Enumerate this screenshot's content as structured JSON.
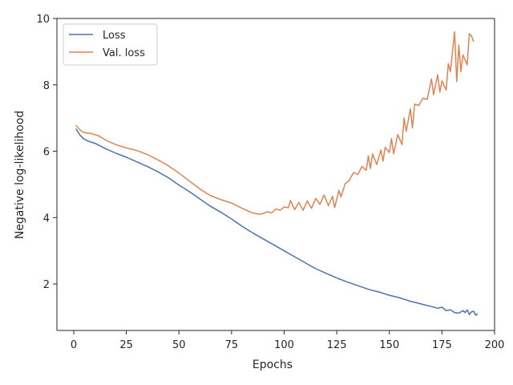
{
  "chart_data": {
    "type": "line",
    "title": "",
    "xlabel": "Epochs",
    "ylabel": "Negative log-likelihood",
    "xlim": [
      -8,
      200
    ],
    "ylim": [
      0.6,
      10
    ],
    "xticks": [
      0,
      25,
      50,
      75,
      100,
      125,
      150,
      175,
      200
    ],
    "yticks": [
      2,
      4,
      6,
      8,
      10
    ],
    "grid": false,
    "legend": {
      "position": "top-left"
    },
    "series": [
      {
        "name": "Loss",
        "color": "#4c72b0",
        "points": [
          [
            1,
            6.68
          ],
          [
            3,
            6.48
          ],
          [
            5,
            6.36
          ],
          [
            7,
            6.3
          ],
          [
            10,
            6.24
          ],
          [
            15,
            6.08
          ],
          [
            20,
            5.94
          ],
          [
            25,
            5.82
          ],
          [
            30,
            5.68
          ],
          [
            35,
            5.54
          ],
          [
            40,
            5.38
          ],
          [
            45,
            5.2
          ],
          [
            50,
            4.98
          ],
          [
            55,
            4.78
          ],
          [
            60,
            4.56
          ],
          [
            65,
            4.34
          ],
          [
            70,
            4.16
          ],
          [
            75,
            3.96
          ],
          [
            80,
            3.74
          ],
          [
            85,
            3.54
          ],
          [
            90,
            3.36
          ],
          [
            95,
            3.18
          ],
          [
            100,
            3.0
          ],
          [
            105,
            2.82
          ],
          [
            110,
            2.64
          ],
          [
            115,
            2.46
          ],
          [
            120,
            2.32
          ],
          [
            125,
            2.18
          ],
          [
            130,
            2.06
          ],
          [
            135,
            1.95
          ],
          [
            140,
            1.84
          ],
          [
            145,
            1.76
          ],
          [
            150,
            1.66
          ],
          [
            155,
            1.58
          ],
          [
            160,
            1.48
          ],
          [
            165,
            1.4
          ],
          [
            170,
            1.32
          ],
          [
            173,
            1.27
          ],
          [
            175,
            1.3
          ],
          [
            177,
            1.2
          ],
          [
            179,
            1.22
          ],
          [
            181,
            1.14
          ],
          [
            183,
            1.12
          ],
          [
            185,
            1.2
          ],
          [
            186,
            1.14
          ],
          [
            187,
            1.22
          ],
          [
            188,
            1.08
          ],
          [
            189,
            1.16
          ],
          [
            190,
            1.18
          ],
          [
            191,
            1.06
          ],
          [
            192,
            1.1
          ]
        ]
      },
      {
        "name": "Val. loss",
        "color": "#dd8452",
        "points": [
          [
            1,
            6.78
          ],
          [
            3,
            6.64
          ],
          [
            5,
            6.56
          ],
          [
            8,
            6.54
          ],
          [
            12,
            6.46
          ],
          [
            15,
            6.34
          ],
          [
            20,
            6.2
          ],
          [
            25,
            6.1
          ],
          [
            30,
            6.02
          ],
          [
            35,
            5.9
          ],
          [
            40,
            5.74
          ],
          [
            45,
            5.56
          ],
          [
            50,
            5.34
          ],
          [
            55,
            5.1
          ],
          [
            60,
            4.86
          ],
          [
            65,
            4.66
          ],
          [
            70,
            4.54
          ],
          [
            75,
            4.44
          ],
          [
            80,
            4.28
          ],
          [
            85,
            4.14
          ],
          [
            88,
            4.1
          ],
          [
            90,
            4.12
          ],
          [
            92,
            4.18
          ],
          [
            94,
            4.14
          ],
          [
            96,
            4.26
          ],
          [
            98,
            4.22
          ],
          [
            100,
            4.32
          ],
          [
            102,
            4.3
          ],
          [
            103,
            4.52
          ],
          [
            105,
            4.24
          ],
          [
            107,
            4.46
          ],
          [
            109,
            4.22
          ],
          [
            111,
            4.5
          ],
          [
            113,
            4.28
          ],
          [
            115,
            4.58
          ],
          [
            117,
            4.4
          ],
          [
            119,
            4.68
          ],
          [
            121,
            4.36
          ],
          [
            123,
            4.64
          ],
          [
            124,
            4.3
          ],
          [
            126,
            4.82
          ],
          [
            127,
            4.62
          ],
          [
            129,
            5.02
          ],
          [
            131,
            5.12
          ],
          [
            133,
            5.36
          ],
          [
            135,
            5.3
          ],
          [
            137,
            5.54
          ],
          [
            139,
            5.42
          ],
          [
            140,
            5.86
          ],
          [
            141,
            5.48
          ],
          [
            142,
            5.92
          ],
          [
            144,
            5.6
          ],
          [
            146,
            6.04
          ],
          [
            147,
            5.7
          ],
          [
            148,
            6.12
          ],
          [
            150,
            5.96
          ],
          [
            151,
            6.38
          ],
          [
            152,
            5.92
          ],
          [
            154,
            6.5
          ],
          [
            156,
            6.2
          ],
          [
            157,
            7.0
          ],
          [
            158,
            6.6
          ],
          [
            160,
            7.28
          ],
          [
            161,
            6.7
          ],
          [
            162,
            7.42
          ],
          [
            164,
            7.38
          ],
          [
            166,
            7.6
          ],
          [
            168,
            7.56
          ],
          [
            170,
            8.18
          ],
          [
            171,
            7.7
          ],
          [
            172,
            8.02
          ],
          [
            173,
            8.3
          ],
          [
            174,
            7.78
          ],
          [
            175,
            8.12
          ],
          [
            177,
            7.84
          ],
          [
            178,
            8.64
          ],
          [
            179,
            8.4
          ],
          [
            181,
            9.6
          ],
          [
            182,
            8.1
          ],
          [
            183,
            9.2
          ],
          [
            184,
            8.4
          ],
          [
            185,
            8.9
          ],
          [
            187,
            8.6
          ],
          [
            188,
            9.54
          ],
          [
            189,
            9.48
          ],
          [
            190,
            9.3
          ]
        ]
      }
    ]
  }
}
